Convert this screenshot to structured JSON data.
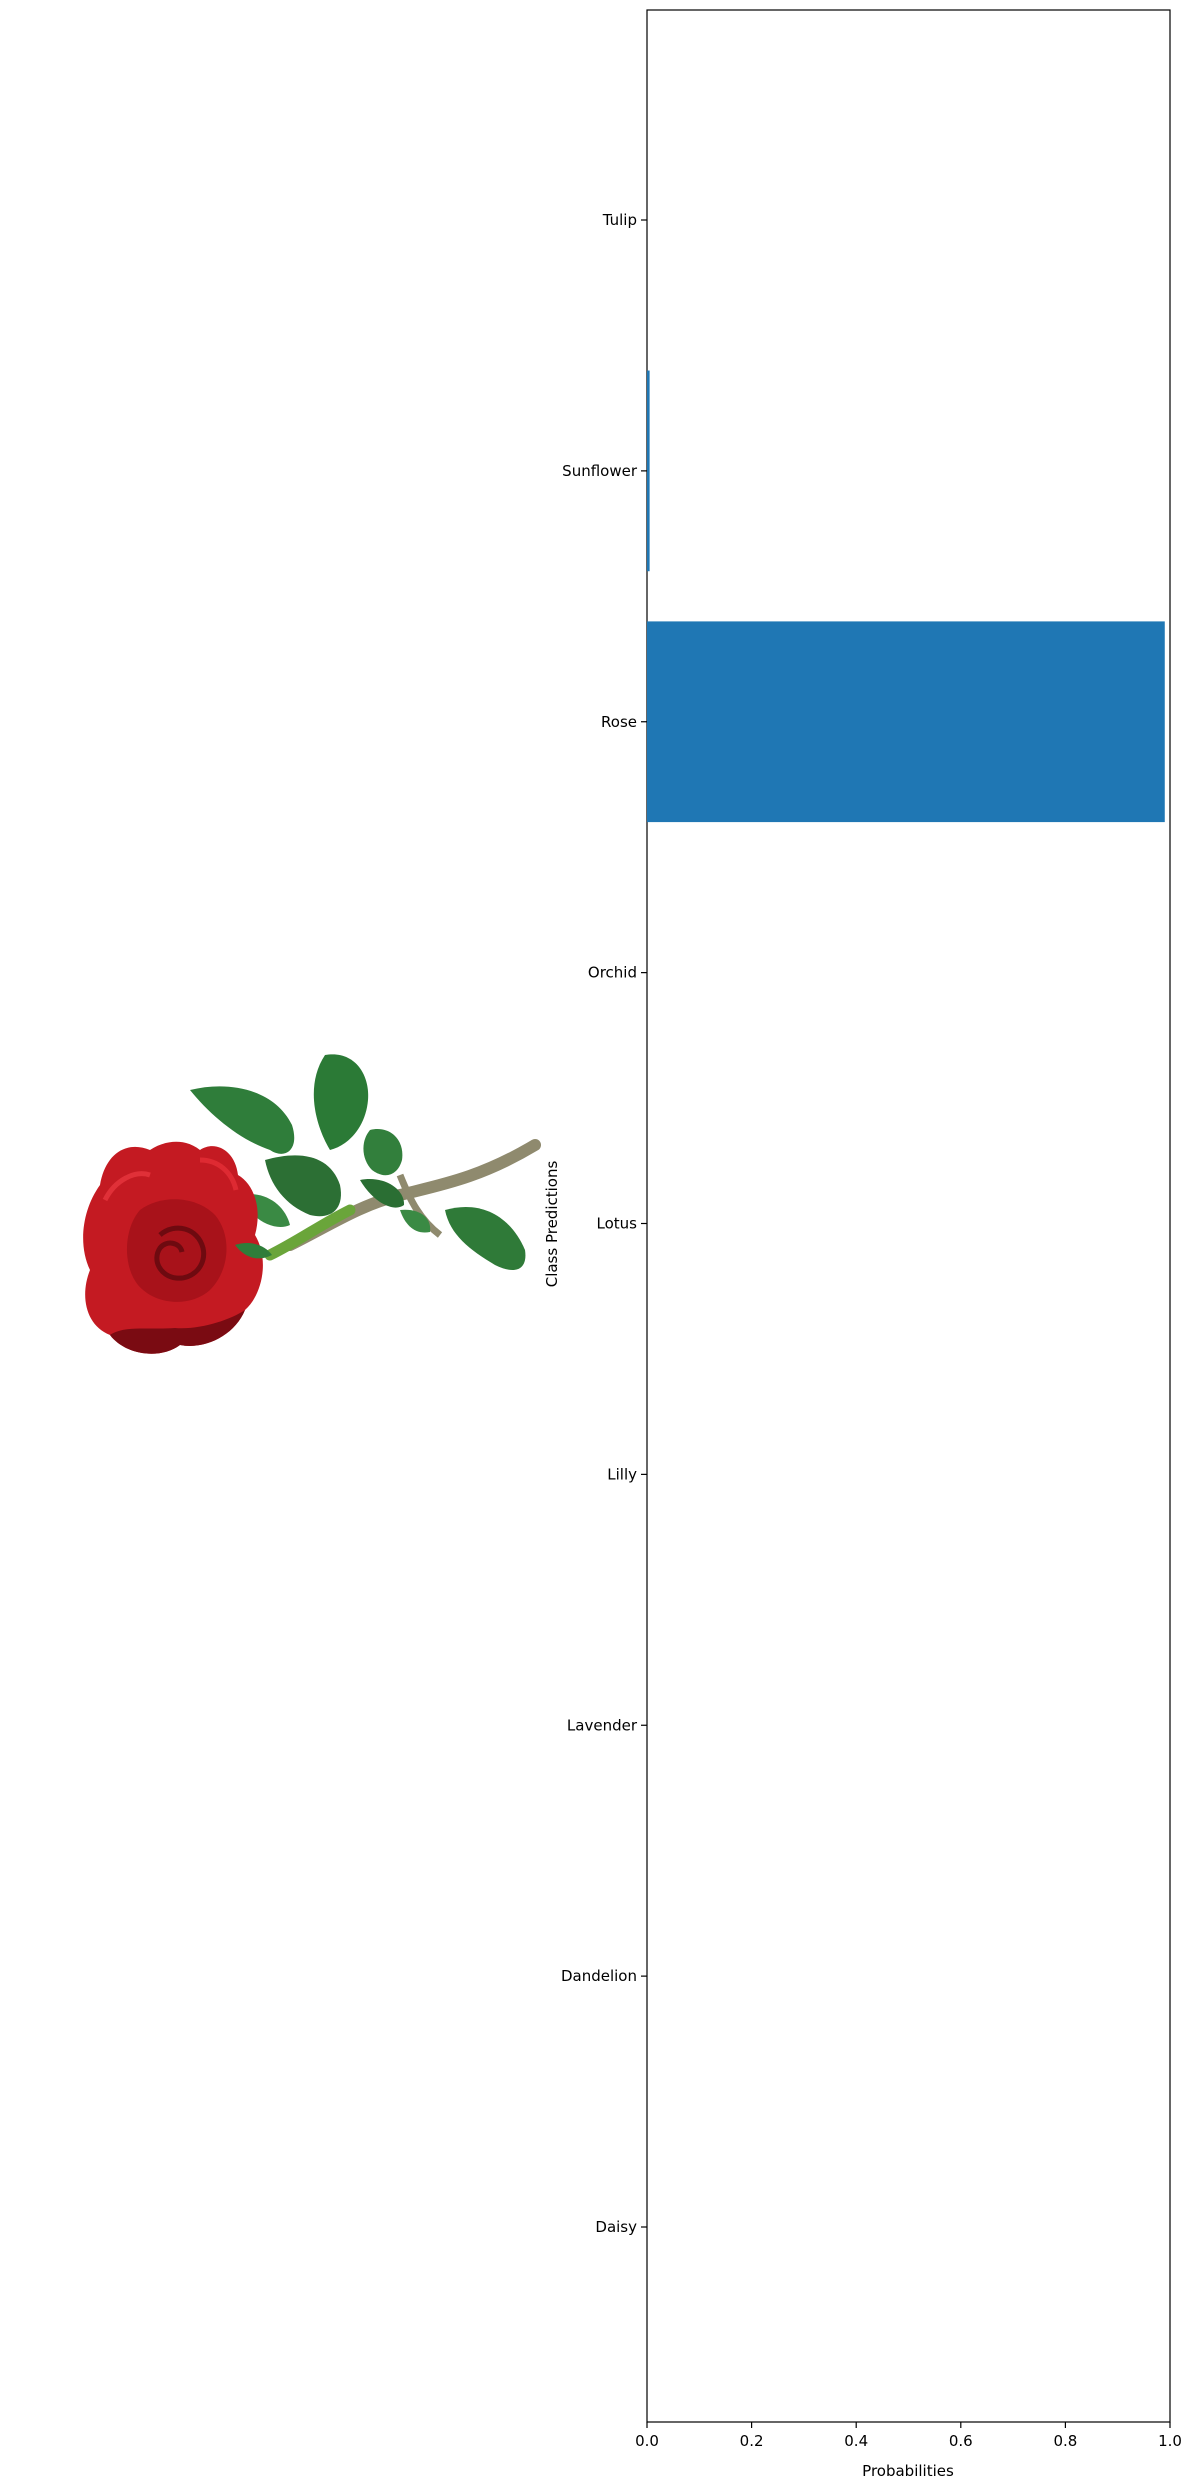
{
  "chart_data": {
    "type": "bar",
    "orientation": "horizontal",
    "categories": [
      "Daisy",
      "Dandelion",
      "Lavender",
      "Lilly",
      "Lotus",
      "Orchid",
      "Rose",
      "Sunflower",
      "Tulip"
    ],
    "values": [
      0.0,
      0.0,
      0.0,
      0.0,
      0.0,
      0.0,
      0.99,
      0.005,
      0.0
    ],
    "xlabel": "Probabilities",
    "ylabel": "Class Predictions",
    "xlim": [
      0,
      1
    ],
    "xticks": [
      "0.0",
      "0.2",
      "0.4",
      "0.6",
      "0.8",
      "1.0"
    ],
    "bar_color": "#1f77b4",
    "grid": false,
    "legend": "none"
  },
  "image_panel": {
    "subject": "red-rose-photo",
    "colors": {
      "petal": "#c8161e",
      "petal_dark": "#7a0a10",
      "leaf": "#2e7a3a",
      "leaf_dark": "#1f5a2a",
      "stem": "#8a8a6a"
    }
  }
}
